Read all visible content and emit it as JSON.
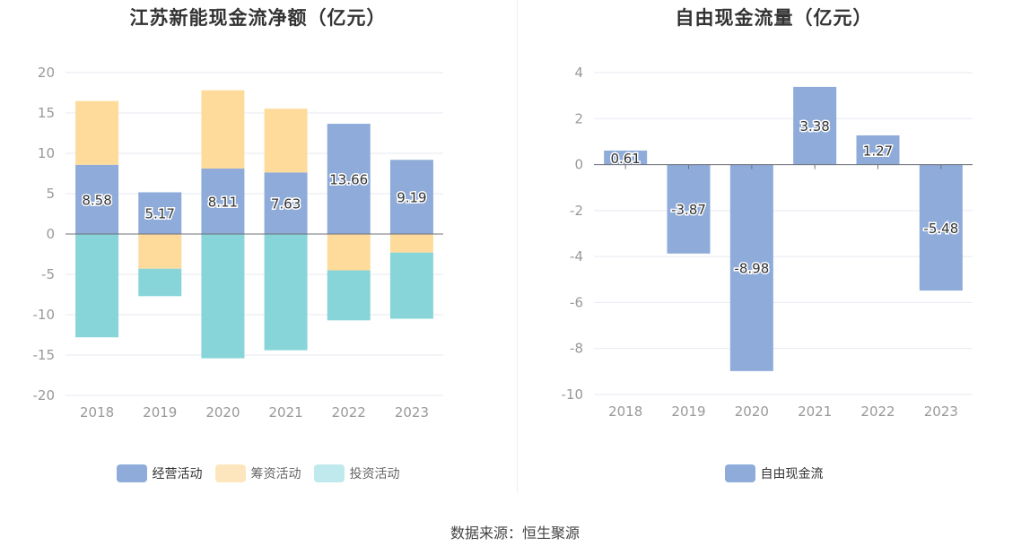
{
  "colors": {
    "operating": "#8eabd9",
    "financing": "#fedb9b",
    "investing": "#87d5d8",
    "investing_legend": "#bfe9ec",
    "financing_legend": "#fde6bd",
    "free_cash": "#8eabd9",
    "axis_text": "#999999",
    "grid": "#e6eaf2"
  },
  "source": "数据来源：恒生聚源",
  "chart_data": [
    {
      "type": "bar",
      "stacked": true,
      "title": "江苏新能现金流净额（亿元）",
      "categories": [
        "2018",
        "2019",
        "2020",
        "2021",
        "2022",
        "2023"
      ],
      "ylim": [
        -20,
        20
      ],
      "yticks": [
        20,
        15,
        10,
        5,
        0,
        -5,
        -10,
        -15,
        -20
      ],
      "grid": true,
      "legend_position": "bottom",
      "series": [
        {
          "name": "经营活动",
          "values": [
            8.58,
            5.17,
            8.11,
            7.63,
            13.66,
            9.19
          ],
          "labels_shown": true
        },
        {
          "name": "筹资活动",
          "values": [
            7.9,
            -4.3,
            9.7,
            7.9,
            -4.5,
            -2.3
          ],
          "labels_shown": false
        },
        {
          "name": "投资活动",
          "values": [
            -12.8,
            -3.4,
            -15.4,
            -14.4,
            -6.2,
            -8.2
          ],
          "labels_shown": false
        }
      ]
    },
    {
      "type": "bar",
      "title": "自由现金流量（亿元）",
      "categories": [
        "2018",
        "2019",
        "2020",
        "2021",
        "2022",
        "2023"
      ],
      "ylim": [
        -10,
        4
      ],
      "yticks": [
        4,
        2,
        0,
        -2,
        -4,
        -6,
        -8,
        -10
      ],
      "grid": true,
      "legend_position": "bottom",
      "series": [
        {
          "name": "自由现金流",
          "values": [
            0.61,
            -3.87,
            -8.98,
            3.38,
            1.27,
            -5.48
          ],
          "labels_shown": true
        }
      ]
    }
  ]
}
